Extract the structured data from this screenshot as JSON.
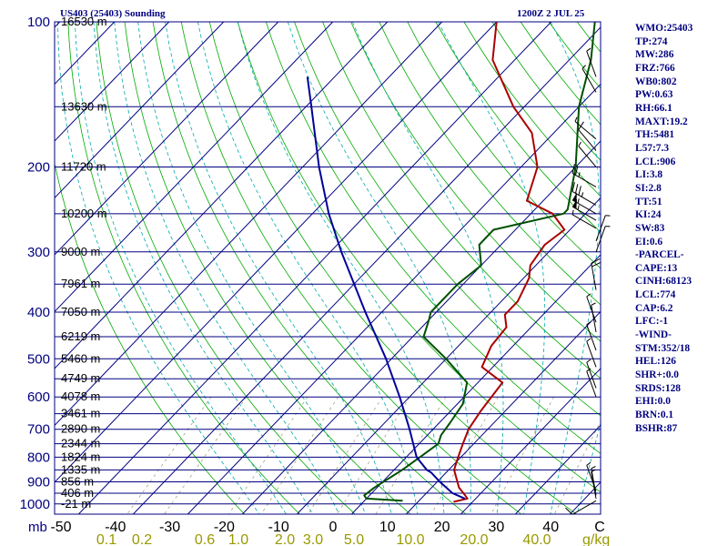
{
  "header": {
    "title": "US403 (25403) Sounding",
    "datetime": "1200Z  2 JUL 25"
  },
  "chart_data": {
    "type": "skew-t",
    "pressure_label": "mb",
    "pressure_levels": [
      100,
      200,
      300,
      400,
      500,
      600,
      700,
      800,
      900,
      1000
    ],
    "temperature_ticks": [
      -50,
      -40,
      -30,
      -20,
      -10,
      0,
      10,
      20,
      30,
      40
    ],
    "temperature_end_label": "C",
    "mixing_ratio_ticks": [
      "0.1",
      "0.2",
      "0.6",
      "1.0",
      "2.0",
      "3.0",
      "5.0",
      "10.0",
      "20.0",
      "40.0"
    ],
    "mixing_ratio_unit": "g/kg",
    "height_labels": [
      {
        "p": 100,
        "label": "16530 m"
      },
      {
        "p": 150,
        "label": "13630 m"
      },
      {
        "p": 200,
        "label": "11720 m"
      },
      {
        "p": 250,
        "label": "10200 m"
      },
      {
        "p": 300,
        "label": "9000 m"
      },
      {
        "p": 350,
        "label": "7961 m"
      },
      {
        "p": 400,
        "label": "7050 m"
      },
      {
        "p": 450,
        "label": "6219 m"
      },
      {
        "p": 500,
        "label": "5460 m"
      },
      {
        "p": 550,
        "label": "4749 m"
      },
      {
        "p": 600,
        "label": "4078 m"
      },
      {
        "p": 650,
        "label": "3461 m"
      },
      {
        "p": 700,
        "label": "2890 m"
      },
      {
        "p": 750,
        "label": "2344 m"
      },
      {
        "p": 800,
        "label": "1824 m"
      },
      {
        "p": 850,
        "label": "1335 m"
      },
      {
        "p": 900,
        "label": "856 m"
      },
      {
        "p": 950,
        "label": "406 m"
      },
      {
        "p": 1000,
        "label": "-21 m"
      }
    ],
    "series": [
      {
        "kind": "temperature",
        "color": "#aa0000",
        "points": [
          [
            990,
            16.5
          ],
          [
            975,
            18.5
          ],
          [
            960,
            17.5
          ],
          [
            925,
            15
          ],
          [
            850,
            11
          ],
          [
            800,
            9.5
          ],
          [
            750,
            8
          ],
          [
            700,
            6.5
          ],
          [
            640,
            5.5
          ],
          [
            560,
            4.5
          ],
          [
            520,
            -2
          ],
          [
            470,
            -4
          ],
          [
            430,
            -4.5
          ],
          [
            405,
            -7
          ],
          [
            380,
            -7
          ],
          [
            340,
            -9
          ],
          [
            320,
            -11
          ],
          [
            290,
            -12
          ],
          [
            270,
            -11
          ],
          [
            250,
            -16
          ],
          [
            235,
            -23
          ],
          [
            200,
            -27
          ],
          [
            170,
            -34
          ],
          [
            150,
            -42
          ],
          [
            120,
            -54
          ],
          [
            100,
            -60
          ]
        ]
      },
      {
        "kind": "dewpoint",
        "color": "#005000",
        "points": [
          [
            985,
            7
          ],
          [
            975,
            0
          ],
          [
            960,
            -1
          ],
          [
            925,
            -0.5
          ],
          [
            850,
            1.5
          ],
          [
            800,
            2.5
          ],
          [
            750,
            3.5
          ],
          [
            720,
            2.5
          ],
          [
            680,
            2
          ],
          [
            620,
            1
          ],
          [
            560,
            -2
          ],
          [
            500,
            -10
          ],
          [
            450,
            -18
          ],
          [
            415,
            -20
          ],
          [
            400,
            -21
          ],
          [
            350,
            -21
          ],
          [
            320,
            -20
          ],
          [
            290,
            -24
          ],
          [
            270,
            -24
          ],
          [
            250,
            -14
          ],
          [
            245,
            -14
          ],
          [
            200,
            -20
          ],
          [
            150,
            -30
          ],
          [
            120,
            -36
          ],
          [
            100,
            -42
          ]
        ]
      },
      {
        "kind": "parcel",
        "color": "#000099",
        "points": [
          [
            975,
            18
          ],
          [
            950,
            14.8
          ],
          [
            900,
            10.5
          ],
          [
            860,
            7.2
          ],
          [
            850,
            6
          ],
          [
            800,
            1.9
          ],
          [
            700,
            -4.3
          ],
          [
            600,
            -11.8
          ],
          [
            500,
            -21
          ],
          [
            400,
            -33
          ],
          [
            300,
            -48
          ],
          [
            250,
            -57
          ],
          [
            200,
            -67
          ],
          [
            150,
            -79
          ],
          [
            130,
            -85
          ]
        ]
      }
    ],
    "winds": [
      {
        "p": 985,
        "dir": 240,
        "spd": 10
      },
      {
        "p": 975,
        "dir": 350,
        "spd": 5
      },
      {
        "p": 960,
        "dir": 350,
        "spd": 5
      },
      {
        "p": 940,
        "dir": 340,
        "spd": 5
      },
      {
        "p": 600,
        "dir": 340,
        "spd": 5
      },
      {
        "p": 575,
        "dir": 340,
        "spd": 5
      },
      {
        "p": 520,
        "dir": 340,
        "spd": 5
      },
      {
        "p": 480,
        "dir": 340,
        "spd": 5
      },
      {
        "p": 440,
        "dir": 350,
        "spd": 5
      },
      {
        "p": 420,
        "dir": 340,
        "spd": 5
      },
      {
        "p": 360,
        "dir": 350,
        "spd": 20
      },
      {
        "p": 300,
        "dir": 20,
        "spd": 5
      },
      {
        "p": 285,
        "dir": 20,
        "spd": 5
      },
      {
        "p": 268,
        "dir": 300,
        "spd": 5
      },
      {
        "p": 258,
        "dir": 300,
        "spd": 55
      },
      {
        "p": 250,
        "dir": 300,
        "spd": 55
      },
      {
        "p": 240,
        "dir": 300,
        "spd": 35
      },
      {
        "p": 220,
        "dir": 300,
        "spd": 25
      },
      {
        "p": 200,
        "dir": 320,
        "spd": 5
      },
      {
        "p": 185,
        "dir": 320,
        "spd": 10
      },
      {
        "p": 175,
        "dir": 310,
        "spd": 5
      },
      {
        "p": 140,
        "dir": 330,
        "spd": 5
      },
      {
        "p": 130,
        "dir": 340,
        "spd": 5
      }
    ]
  },
  "indices": [
    "WMO:25403",
    "TP:274",
    "MW:286",
    "FRZ:766",
    "WB0:802",
    "PW:0.63",
    "RH:66.1",
    "MAXT:19.2",
    "TH:5481",
    "L57:7.3",
    "LCL:906",
    "LI:3.8",
    "SI:2.8",
    "TT:51",
    "KI:24",
    "SW:83",
    "EI:0.6",
    "-PARCEL-",
    "CAPE:13",
    "CINH:68123",
    "LCL:774",
    "CAP:6.2",
    "LFC:-1",
    "-WIND-",
    "STM:352/18",
    "HEL:126",
    "SHR+:0.0",
    "SRDS:128",
    "EHI:0.0",
    "BRN:0.1",
    "BSHR:87"
  ],
  "colors": {
    "isobar": "#000080",
    "isotherm": "#000080",
    "dry_adiabat": "#00aa00",
    "moist_adiabat": "#00aaaa",
    "mixing_ratio": "#55aaff",
    "frame": "#000080",
    "axis_text": "#000000",
    "mixing_text": "#999900"
  }
}
